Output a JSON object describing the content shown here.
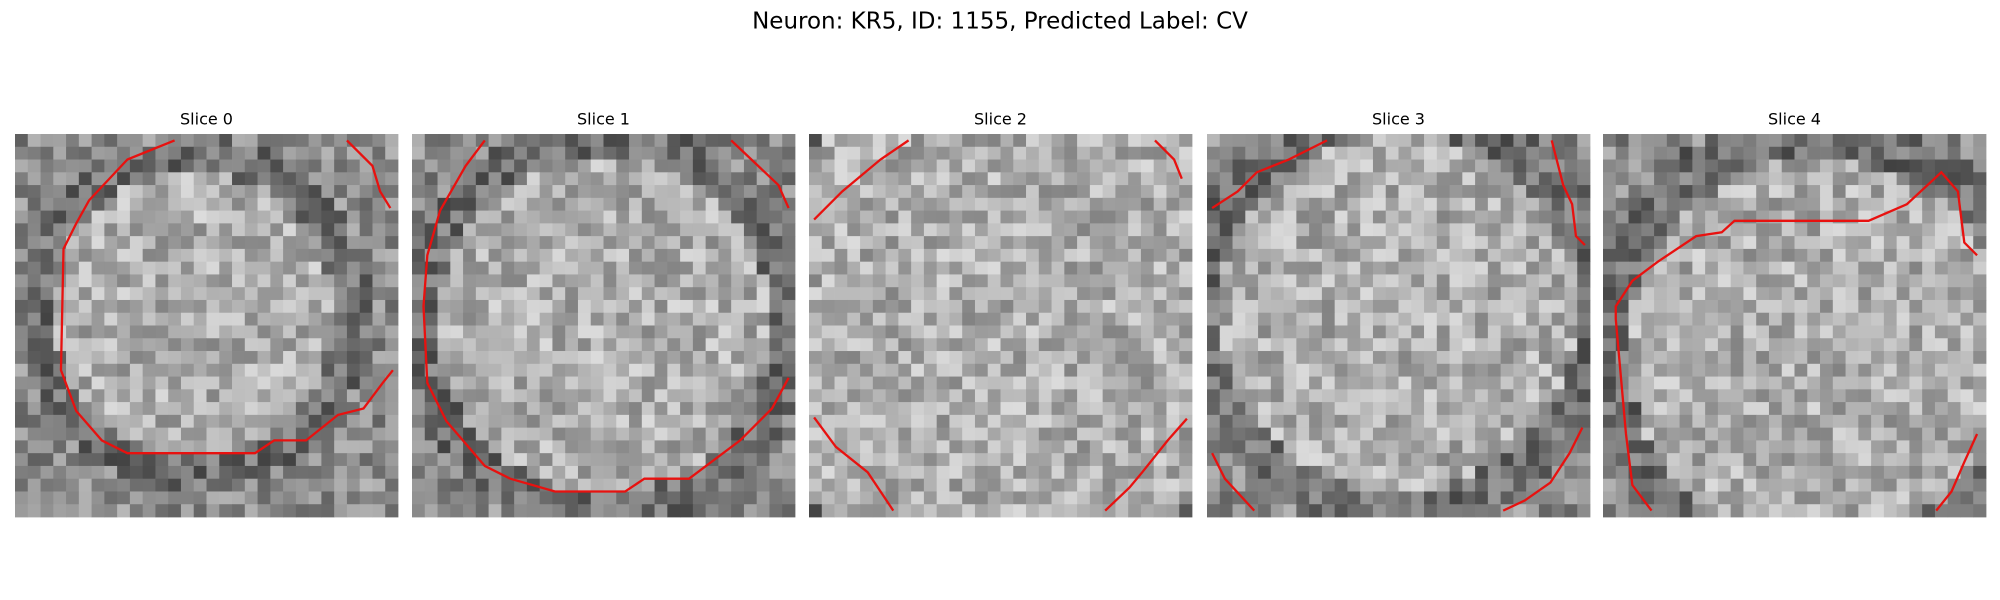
{
  "title": "Neuron: KR5, ID: 1155, Predicted Label: CV",
  "panels": [
    {
      "title": "Slice 0"
    },
    {
      "title": "Slice 1"
    },
    {
      "title": "Slice 2"
    },
    {
      "title": "Slice 3"
    },
    {
      "title": "Slice 4"
    }
  ]
}
